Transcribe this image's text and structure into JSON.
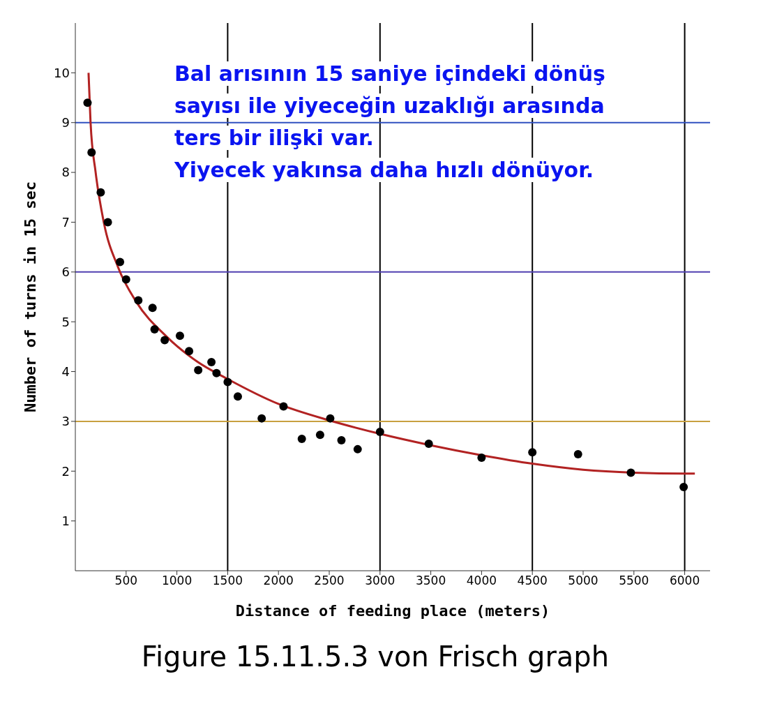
{
  "chart_data": {
    "type": "scatter",
    "xlabel": "Distance of feeding place (meters)",
    "ylabel": "Number of turns in 15 sec",
    "xlim": [
      0,
      6250
    ],
    "xticks": [
      500,
      1000,
      1500,
      2000,
      2500,
      3000,
      3500,
      4000,
      4500,
      5000,
      5500,
      6000
    ],
    "ylim": [
      0,
      11
    ],
    "yticks": [
      1,
      2,
      3,
      4,
      5,
      6,
      7,
      8,
      9,
      10
    ],
    "grid": false,
    "series": [
      {
        "color": "#000000",
        "marker": "circle",
        "x": [
          120,
          160,
          250,
          320,
          440,
          500,
          620,
          760,
          780,
          880,
          1030,
          1120,
          1210,
          1340,
          1390,
          1500,
          1600,
          1835,
          2050,
          2230,
          2410,
          2510,
          2620,
          2780,
          3000,
          3480,
          4000,
          4500,
          4950,
          5470,
          5990
        ],
        "values": [
          9.4,
          8.4,
          7.6,
          7.0,
          6.2,
          5.85,
          5.43,
          5.28,
          4.85,
          4.63,
          4.72,
          4.41,
          4.03,
          4.19,
          3.97,
          3.79,
          3.5,
          3.06,
          3.3,
          2.65,
          2.73,
          3.06,
          2.62,
          2.44,
          2.79,
          2.55,
          2.27,
          2.38,
          2.34,
          1.97,
          1.68
        ]
      },
      {
        "type": "line",
        "color": "#b22222",
        "marker": "none",
        "line_style": "solid",
        "x": [
          130,
          150,
          200,
          280,
          420,
          600,
          900,
          1200,
          1500,
          2000,
          2500,
          3000,
          3500,
          4000,
          4500,
          5000,
          5500,
          6000,
          6100
        ],
        "values": [
          10,
          9,
          8,
          7,
          6.1,
          5.4,
          4.7,
          4.2,
          3.85,
          3.35,
          3.02,
          2.75,
          2.52,
          2.32,
          2.15,
          2.03,
          1.97,
          1.95,
          1.95
        ]
      }
    ],
    "ref_lines": [
      {
        "axis": "x",
        "value": 1500,
        "color": "#000000"
      },
      {
        "axis": "x",
        "value": 3000,
        "color": "#000000"
      },
      {
        "axis": "x",
        "value": 4500,
        "color": "#000000"
      },
      {
        "axis": "x",
        "value": 6000,
        "color": "#000000"
      },
      {
        "axis": "y",
        "value": 3,
        "color": "#c8a040"
      },
      {
        "axis": "y",
        "value": 6,
        "color": "#5040b0"
      },
      {
        "axis": "y",
        "value": 9,
        "color": "#3050c0"
      }
    ],
    "annotations": [
      "Bal arısının 15 saniye içindeki dönüş\nsayısı ile yiyeceğin uzaklığı arasında\nters bir ilişki var.\nYiyecek yakınsa daha hızlı dönüyor.",
      "Figure 15.11.5.3 von Frisch graph"
    ]
  }
}
